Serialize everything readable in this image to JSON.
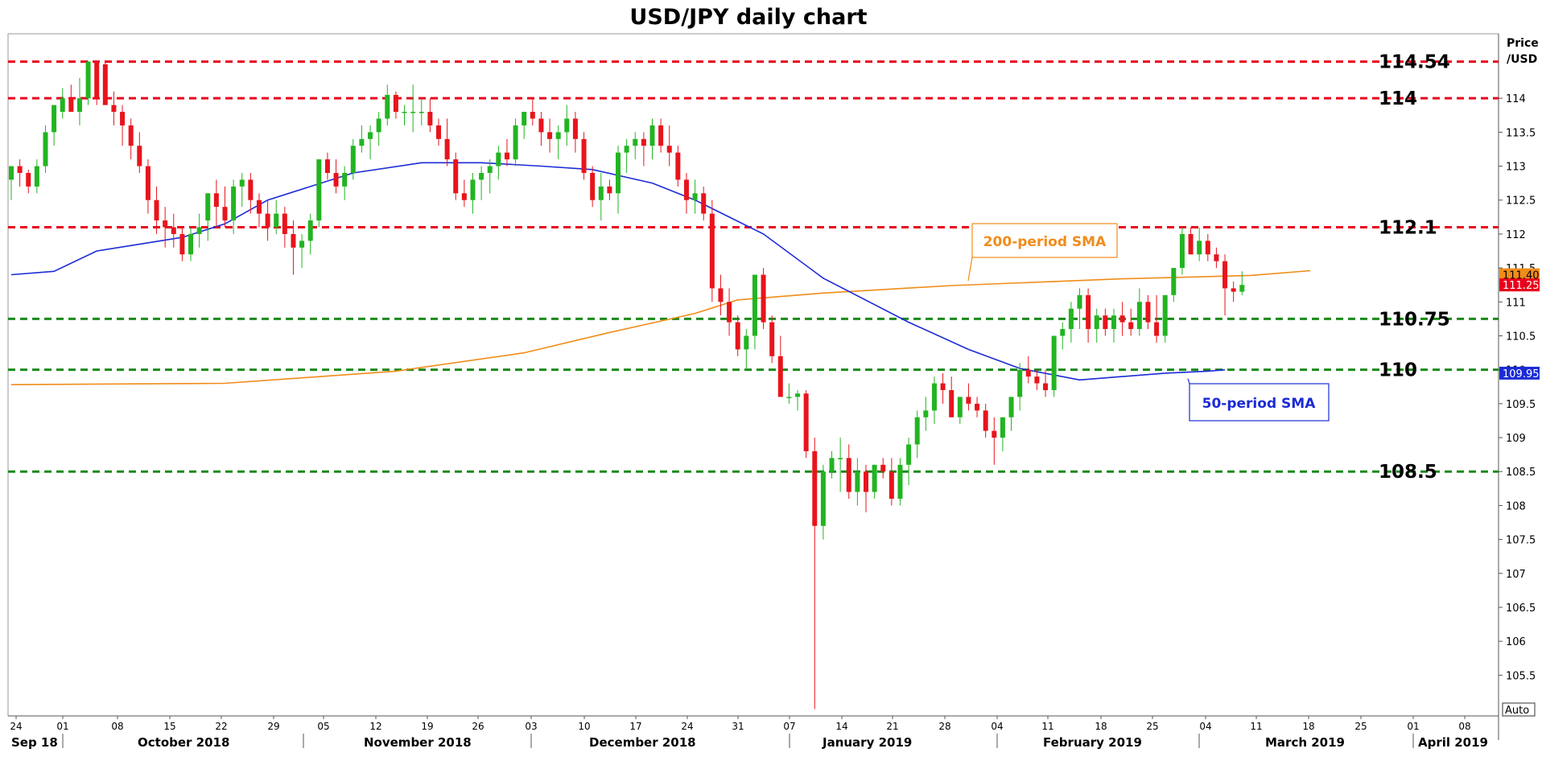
{
  "chart_data": {
    "type": "candlestick",
    "title": "USD/JPY daily chart",
    "ylabel": "Price /USD",
    "ylabel_lines": [
      "Price",
      "/USD"
    ],
    "ylim": [
      104.9,
      114.95
    ],
    "y_ticks": [
      105.5,
      106,
      106.5,
      107,
      107.5,
      108,
      108.5,
      109,
      109.5,
      110,
      110.5,
      111,
      111.5,
      112,
      112.5,
      113,
      113.5,
      114
    ],
    "y_tick_labels": [
      "105.5",
      "106",
      "106.5",
      "107",
      "107.5",
      "108",
      "108.5",
      "109",
      "109.5",
      "110",
      "110.5",
      "111",
      "111.5",
      "112",
      "112.5",
      "113",
      "113.5",
      "114"
    ],
    "x_day_labels": [
      "24",
      "01",
      "08",
      "15",
      "22",
      "29",
      "05",
      "12",
      "19",
      "26",
      "03",
      "10",
      "17",
      "24",
      "31",
      "07",
      "14",
      "21",
      "28",
      "04",
      "11",
      "18",
      "25",
      "04",
      "11",
      "18",
      "25",
      "01",
      "08"
    ],
    "x_month_labels": [
      "Sep 18",
      "October 2018",
      "November 2018",
      "December 2018",
      "January 2019",
      "February 2019",
      "March 2019",
      "April 2019"
    ],
    "auto_label": "Auto",
    "horizontal_levels": [
      {
        "value": 114.54,
        "label": "114.54",
        "color": "#e8001c"
      },
      {
        "value": 114,
        "label": "114",
        "color": "#e8001c"
      },
      {
        "value": 112.1,
        "label": "112.1",
        "color": "#e8001c"
      },
      {
        "value": 110.75,
        "label": "110.75",
        "color": "#1a8a1a"
      },
      {
        "value": 110,
        "label": "110",
        "color": "#1a8a1a"
      },
      {
        "value": 108.5,
        "label": "108.5",
        "color": "#1a8a1a"
      }
    ],
    "price_tags": [
      {
        "value": 111.4,
        "label": "111.40",
        "color": "#f08c1a"
      },
      {
        "value": 111.25,
        "label": "111.25",
        "color": "#e8001c"
      },
      {
        "value": 109.95,
        "label": "109.95",
        "color": "#1b2bd6"
      }
    ],
    "annotations": [
      {
        "text": "200-period SMA",
        "color": "#f08c1a"
      },
      {
        "text": "50-period SMA",
        "color": "#1b2bd6"
      }
    ],
    "series": [
      {
        "name": "200-period SMA",
        "color": "#f08c1a",
        "points": [
          [
            0,
            109.78
          ],
          [
            25,
            109.8
          ],
          [
            45,
            109.98
          ],
          [
            60,
            110.25
          ],
          [
            70,
            110.55
          ],
          [
            80,
            110.83
          ],
          [
            85,
            111.03
          ],
          [
            95,
            111.13
          ],
          [
            110,
            111.24
          ],
          [
            130,
            111.34
          ],
          [
            145,
            111.39
          ],
          [
            152,
            111.46
          ]
        ]
      },
      {
        "name": "50-period SMA",
        "color": "#1b2bd6",
        "points": [
          [
            0,
            111.4
          ],
          [
            5,
            111.45
          ],
          [
            10,
            111.75
          ],
          [
            15,
            111.85
          ],
          [
            20,
            111.95
          ],
          [
            25,
            112.15
          ],
          [
            30,
            112.5
          ],
          [
            40,
            112.9
          ],
          [
            48,
            113.05
          ],
          [
            55,
            113.05
          ],
          [
            62,
            113.0
          ],
          [
            68,
            112.95
          ],
          [
            75,
            112.75
          ],
          [
            80,
            112.5
          ],
          [
            88,
            112.0
          ],
          [
            95,
            111.35
          ],
          [
            105,
            110.7
          ],
          [
            112,
            110.3
          ],
          [
            118,
            110.02
          ],
          [
            125,
            109.85
          ],
          [
            130,
            109.9
          ],
          [
            135,
            109.95
          ],
          [
            140,
            109.98
          ],
          [
            142,
            110.0
          ]
        ]
      }
    ],
    "candles": [
      [
        112.8,
        113.0,
        112.5,
        113.0
      ],
      [
        113.0,
        113.1,
        112.7,
        112.9
      ],
      [
        112.9,
        112.95,
        112.6,
        112.7
      ],
      [
        112.7,
        113.1,
        112.6,
        113.0
      ],
      [
        113.0,
        113.6,
        112.9,
        113.5
      ],
      [
        113.5,
        113.8,
        113.3,
        113.9
      ],
      [
        113.8,
        114.15,
        113.7,
        114.0
      ],
      [
        114.0,
        114.2,
        113.8,
        113.8
      ],
      [
        113.8,
        114.3,
        113.6,
        114.0
      ],
      [
        114.0,
        114.55,
        113.9,
        114.54
      ],
      [
        114.54,
        114.55,
        113.9,
        114.0
      ],
      [
        114.5,
        114.55,
        113.9,
        113.9
      ],
      [
        113.9,
        114.1,
        113.6,
        113.8
      ],
      [
        113.8,
        113.9,
        113.3,
        113.6
      ],
      [
        113.6,
        113.7,
        113.1,
        113.3
      ],
      [
        113.3,
        113.5,
        112.9,
        113.0
      ],
      [
        113.0,
        113.1,
        112.3,
        112.5
      ],
      [
        112.5,
        112.7,
        112.0,
        112.2
      ],
      [
        112.2,
        112.4,
        111.8,
        112.1
      ],
      [
        112.1,
        112.3,
        111.8,
        112.0
      ],
      [
        112.0,
        112.1,
        111.6,
        111.7
      ],
      [
        111.7,
        112.1,
        111.6,
        112.0
      ],
      [
        112.0,
        112.3,
        111.8,
        112.1
      ],
      [
        112.2,
        112.6,
        111.9,
        112.6
      ],
      [
        112.6,
        112.8,
        112.1,
        112.4
      ],
      [
        112.4,
        112.7,
        112.1,
        112.2
      ],
      [
        112.2,
        112.8,
        112.0,
        112.7
      ],
      [
        112.7,
        112.9,
        112.4,
        112.8
      ],
      [
        112.8,
        112.9,
        112.3,
        112.5
      ],
      [
        112.5,
        112.6,
        112.1,
        112.3
      ],
      [
        112.3,
        112.5,
        111.9,
        112.1
      ],
      [
        112.1,
        112.5,
        112.0,
        112.3
      ],
      [
        112.3,
        112.4,
        111.8,
        112.0
      ],
      [
        112.0,
        112.2,
        111.4,
        111.8
      ],
      [
        111.8,
        112.0,
        111.5,
        111.9
      ],
      [
        111.9,
        112.3,
        111.7,
        112.2
      ],
      [
        112.2,
        113.1,
        112.1,
        113.1
      ],
      [
        113.1,
        113.2,
        112.8,
        112.9
      ],
      [
        112.9,
        113.1,
        112.6,
        112.7
      ],
      [
        112.7,
        113.0,
        112.5,
        112.9
      ],
      [
        112.9,
        113.4,
        112.8,
        113.3
      ],
      [
        113.3,
        113.6,
        113.2,
        113.4
      ],
      [
        113.4,
        113.6,
        113.1,
        113.5
      ],
      [
        113.5,
        113.8,
        113.3,
        113.7
      ],
      [
        113.7,
        114.2,
        113.6,
        114.05
      ],
      [
        114.05,
        114.1,
        113.7,
        113.8
      ],
      [
        113.8,
        113.9,
        113.6,
        113.8
      ],
      [
        113.8,
        114.2,
        113.5,
        113.8
      ],
      [
        113.8,
        114.0,
        113.6,
        113.8
      ],
      [
        113.8,
        114.0,
        113.5,
        113.6
      ],
      [
        113.6,
        113.7,
        113.3,
        113.4
      ],
      [
        113.4,
        113.7,
        113.0,
        113.1
      ],
      [
        113.1,
        113.2,
        112.5,
        112.6
      ],
      [
        112.6,
        112.8,
        112.4,
        112.5
      ],
      [
        112.5,
        112.9,
        112.3,
        112.8
      ],
      [
        112.8,
        113.0,
        112.5,
        112.9
      ],
      [
        112.9,
        113.1,
        112.6,
        113.0
      ],
      [
        113.0,
        113.3,
        112.8,
        113.2
      ],
      [
        113.2,
        113.4,
        113.0,
        113.1
      ],
      [
        113.1,
        113.7,
        113.0,
        113.6
      ],
      [
        113.6,
        113.8,
        113.4,
        113.8
      ],
      [
        113.8,
        114.0,
        113.6,
        113.7
      ],
      [
        113.7,
        113.8,
        113.3,
        113.5
      ],
      [
        113.5,
        113.7,
        113.2,
        113.4
      ],
      [
        113.4,
        113.6,
        113.1,
        113.5
      ],
      [
        113.5,
        113.9,
        113.3,
        113.7
      ],
      [
        113.7,
        113.8,
        113.2,
        113.4
      ],
      [
        113.4,
        113.5,
        112.8,
        112.9
      ],
      [
        112.9,
        113.0,
        112.4,
        112.5
      ],
      [
        112.5,
        112.9,
        112.2,
        112.7
      ],
      [
        112.7,
        112.8,
        112.5,
        112.6
      ],
      [
        112.6,
        113.3,
        112.3,
        113.2
      ],
      [
        113.2,
        113.4,
        112.9,
        113.3
      ],
      [
        113.3,
        113.5,
        113.1,
        113.4
      ],
      [
        113.4,
        113.5,
        113.0,
        113.3
      ],
      [
        113.3,
        113.7,
        113.1,
        113.6
      ],
      [
        113.6,
        113.7,
        113.2,
        113.3
      ],
      [
        113.3,
        113.6,
        113.0,
        113.2
      ],
      [
        113.2,
        113.3,
        112.7,
        112.8
      ],
      [
        112.8,
        112.9,
        112.3,
        112.5
      ],
      [
        112.5,
        112.8,
        112.3,
        112.6
      ],
      [
        112.6,
        112.7,
        112.2,
        112.3
      ],
      [
        112.3,
        112.5,
        111.0,
        111.2
      ],
      [
        111.2,
        111.4,
        110.8,
        111.0
      ],
      [
        111.0,
        111.2,
        110.5,
        110.7
      ],
      [
        110.7,
        110.8,
        110.2,
        110.3
      ],
      [
        110.3,
        110.6,
        110.0,
        110.5
      ],
      [
        110.5,
        111.4,
        110.3,
        111.4
      ],
      [
        111.4,
        111.5,
        110.6,
        110.7
      ],
      [
        110.7,
        110.8,
        110.1,
        110.2
      ],
      [
        110.2,
        110.5,
        109.6,
        109.6
      ],
      [
        109.6,
        109.8,
        109.5,
        109.6
      ],
      [
        109.6,
        109.7,
        109.4,
        109.65
      ],
      [
        109.65,
        109.7,
        108.7,
        108.8
      ],
      [
        108.8,
        109.0,
        105.0,
        107.7
      ],
      [
        107.7,
        108.6,
        107.5,
        108.5
      ],
      [
        108.5,
        108.8,
        108.4,
        108.7
      ],
      [
        108.7,
        109.0,
        108.2,
        108.7
      ],
      [
        108.7,
        108.9,
        108.1,
        108.2
      ],
      [
        108.2,
        108.7,
        108.0,
        108.5
      ],
      [
        108.5,
        108.6,
        107.9,
        108.2
      ],
      [
        108.2,
        108.6,
        108.1,
        108.6
      ],
      [
        108.6,
        108.7,
        108.4,
        108.5
      ],
      [
        108.5,
        108.7,
        108.0,
        108.1
      ],
      [
        108.1,
        108.7,
        108.0,
        108.6
      ],
      [
        108.6,
        109.0,
        108.3,
        108.9
      ],
      [
        108.9,
        109.4,
        108.7,
        109.3
      ],
      [
        109.3,
        109.6,
        109.1,
        109.4
      ],
      [
        109.4,
        109.9,
        109.2,
        109.8
      ],
      [
        109.8,
        109.95,
        109.5,
        109.7
      ],
      [
        109.7,
        109.9,
        109.3,
        109.3
      ],
      [
        109.3,
        109.6,
        109.2,
        109.6
      ],
      [
        109.6,
        109.8,
        109.4,
        109.5
      ],
      [
        109.5,
        109.6,
        109.3,
        109.4
      ],
      [
        109.4,
        109.5,
        109.0,
        109.1
      ],
      [
        109.1,
        109.3,
        108.6,
        109.0
      ],
      [
        109.0,
        109.3,
        108.8,
        109.3
      ],
      [
        109.3,
        109.6,
        109.1,
        109.6
      ],
      [
        109.6,
        110.1,
        109.4,
        110.0
      ],
      [
        110.0,
        110.2,
        109.8,
        109.9
      ],
      [
        109.9,
        110.0,
        109.7,
        109.8
      ],
      [
        109.8,
        110.0,
        109.6,
        109.7
      ],
      [
        109.7,
        110.5,
        109.6,
        110.5
      ],
      [
        110.5,
        110.7,
        110.3,
        110.6
      ],
      [
        110.6,
        111.0,
        110.4,
        110.9
      ],
      [
        110.9,
        111.2,
        110.6,
        111.1
      ],
      [
        111.1,
        111.2,
        110.4,
        110.6
      ],
      [
        110.6,
        110.9,
        110.4,
        110.8
      ],
      [
        110.8,
        110.9,
        110.5,
        110.6
      ],
      [
        110.6,
        110.9,
        110.4,
        110.8
      ],
      [
        110.8,
        111.0,
        110.5,
        110.7
      ],
      [
        110.7,
        110.9,
        110.5,
        110.6
      ],
      [
        110.6,
        111.2,
        110.5,
        111.0
      ],
      [
        111.0,
        111.1,
        110.6,
        110.7
      ],
      [
        110.7,
        111.1,
        110.4,
        110.5
      ],
      [
        110.5,
        111.0,
        110.4,
        111.1
      ],
      [
        111.1,
        111.5,
        111.0,
        111.5
      ],
      [
        111.5,
        112.1,
        111.4,
        112.0
      ],
      [
        112.0,
        112.1,
        111.7,
        111.7
      ],
      [
        111.7,
        112.1,
        111.6,
        111.9
      ],
      [
        111.9,
        112.0,
        111.6,
        111.7
      ],
      [
        111.7,
        111.8,
        111.5,
        111.6
      ],
      [
        111.6,
        111.7,
        110.8,
        111.2
      ],
      [
        111.2,
        111.3,
        111.0,
        111.15
      ],
      [
        111.15,
        111.45,
        111.1,
        111.25
      ]
    ]
  }
}
